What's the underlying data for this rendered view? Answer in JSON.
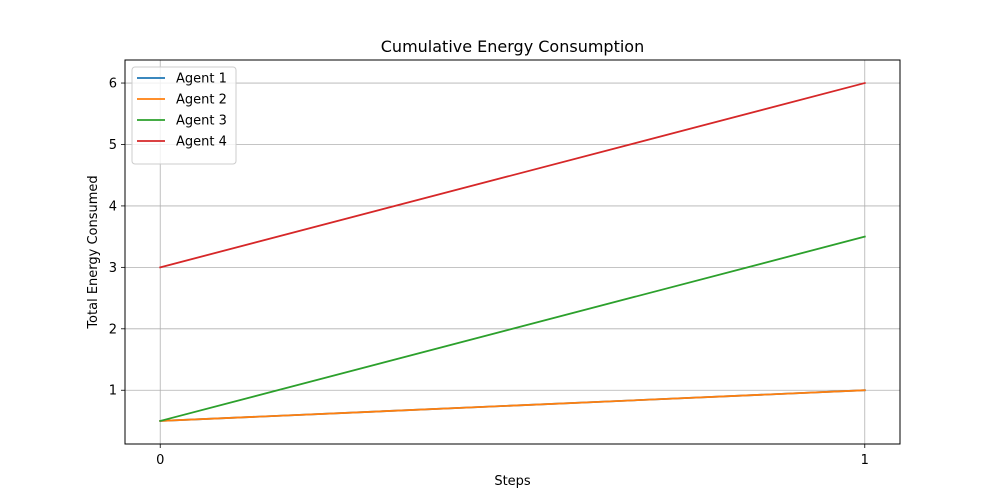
{
  "chart_data": {
    "type": "line",
    "title": "Cumulative Energy Consumption",
    "xlabel": "Steps",
    "ylabel": "Total Energy Consumed",
    "x": [
      0,
      1
    ],
    "xlim": [
      -0.05,
      1.05
    ],
    "ylim": [
      0.125,
      6.375
    ],
    "xticks": [
      0,
      1
    ],
    "yticks": [
      1,
      2,
      3,
      4,
      5,
      6
    ],
    "grid": true,
    "legend_position": "top-left",
    "series": [
      {
        "name": "Agent 1",
        "color": "#1f77b4",
        "values": [
          0.5,
          1.0
        ]
      },
      {
        "name": "Agent 2",
        "color": "#ff7f0e",
        "values": [
          0.5,
          1.0
        ]
      },
      {
        "name": "Agent 3",
        "color": "#2ca02c",
        "values": [
          0.5,
          3.5
        ]
      },
      {
        "name": "Agent 4",
        "color": "#d62728",
        "values": [
          3.0,
          6.0
        ]
      }
    ]
  }
}
